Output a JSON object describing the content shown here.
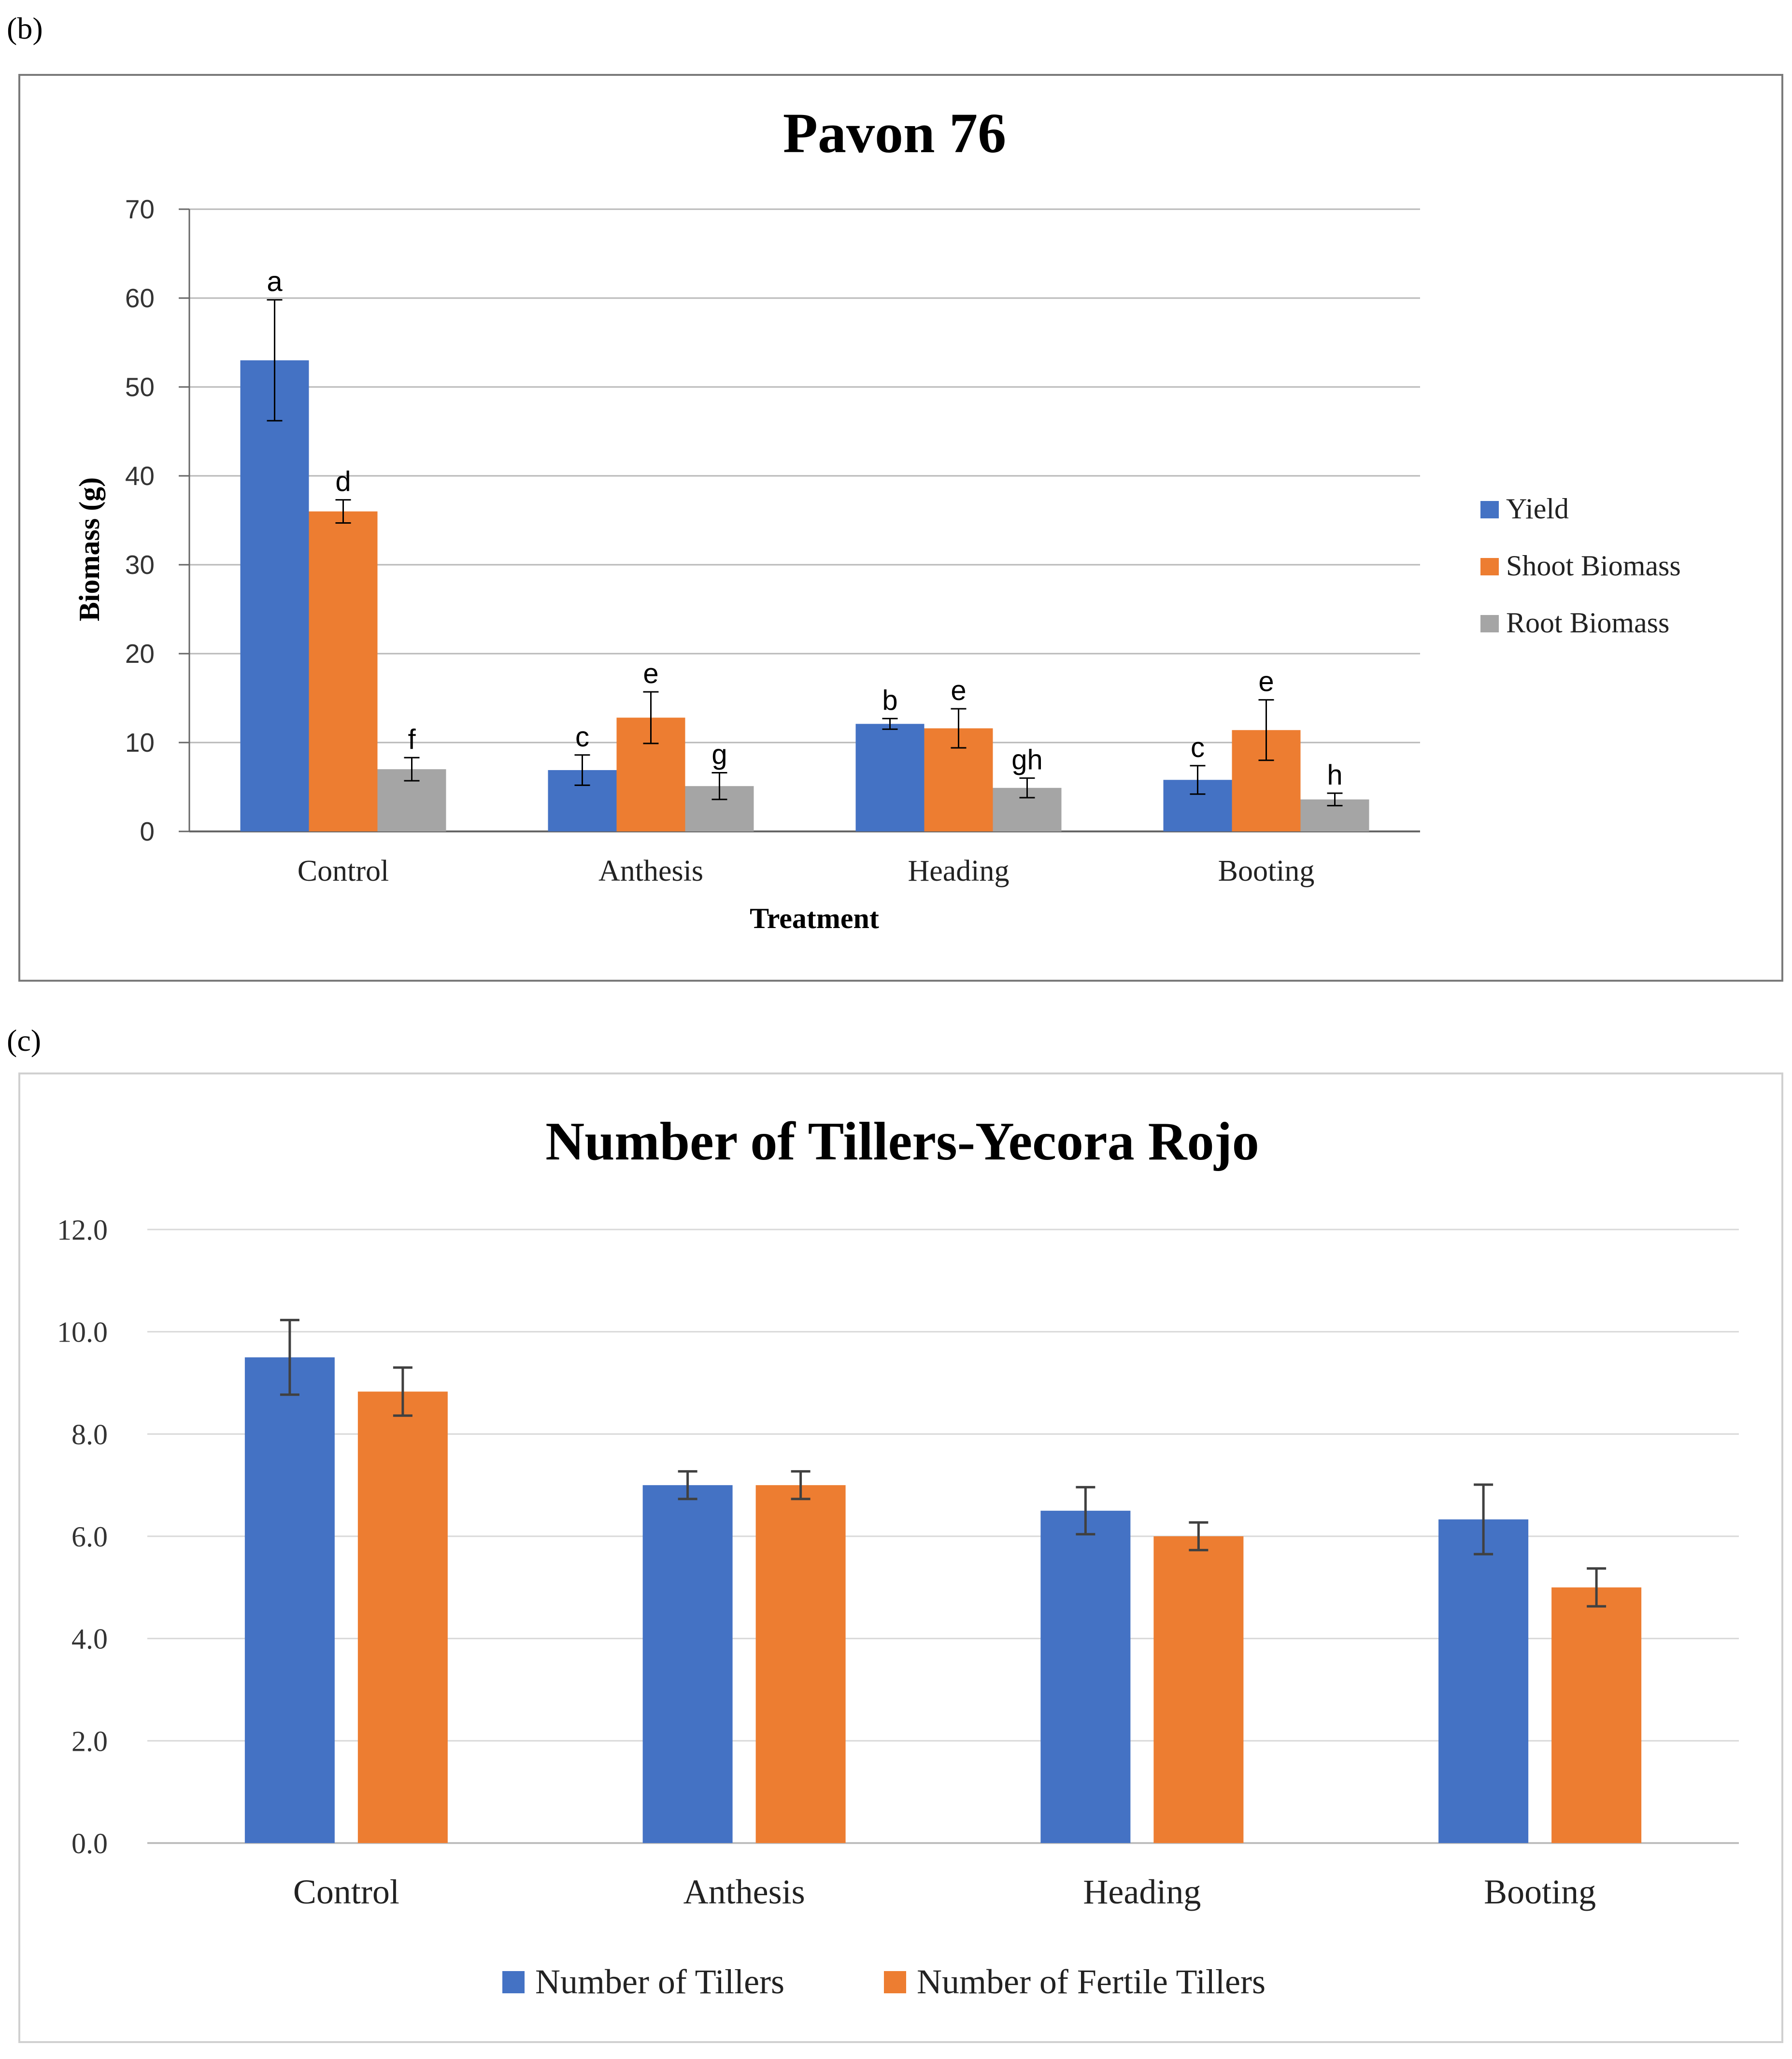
{
  "panel_b_label": "(b)",
  "panel_c_label": "(c)",
  "chart_data": [
    {
      "type": "bar",
      "title": "Pavon 76",
      "xlabel": "Treatment",
      "ylabel": "Biomass (g)",
      "ylim": [
        0,
        70
      ],
      "yticks": [
        "0",
        "10",
        "20",
        "30",
        "40",
        "50",
        "60",
        "70"
      ],
      "grid": true,
      "legend_position": "right",
      "categories": [
        "Control",
        "Anthesis",
        "Heading",
        "Booting"
      ],
      "series": [
        {
          "name": "Yield",
          "color": "#4472C4",
          "values": [
            53,
            6.9,
            12.1,
            5.8
          ],
          "errors": [
            6.8,
            1.7,
            0.6,
            1.6
          ],
          "labels": [
            "a",
            "c",
            "b",
            "c"
          ]
        },
        {
          "name": "Shoot Biomass",
          "color": "#ED7D31",
          "values": [
            36,
            12.8,
            11.6,
            11.4
          ],
          "errors": [
            1.3,
            2.9,
            2.2,
            3.4
          ],
          "labels": [
            "d",
            "e",
            "e",
            "e"
          ]
        },
        {
          "name": "Root Biomass",
          "color": "#A5A5A5",
          "values": [
            7,
            5.1,
            4.9,
            3.6
          ],
          "errors": [
            1.3,
            1.5,
            1.1,
            0.7
          ],
          "labels": [
            "f",
            "g",
            "gh",
            "h"
          ]
        }
      ]
    },
    {
      "type": "bar",
      "title": "Number of Tillers-Yecora Rojo",
      "xlabel": "",
      "ylabel": "",
      "ylim": [
        0,
        12
      ],
      "yticks": [
        "0.0",
        "2.0",
        "4.0",
        "6.0",
        "8.0",
        "10.0",
        "12.0"
      ],
      "grid": true,
      "legend_position": "bottom",
      "categories": [
        "Control",
        "Anthesis",
        "Heading",
        "Booting"
      ],
      "series": [
        {
          "name": "Number of Tillers",
          "color": "#4472C4",
          "values": [
            9.5,
            7.0,
            6.5,
            6.33
          ],
          "errors": [
            0.73,
            0.27,
            0.46,
            0.68
          ]
        },
        {
          "name": "Number of Fertile Tillers",
          "color": "#ED7D31",
          "values": [
            8.83,
            7.0,
            6.0,
            5.0
          ],
          "errors": [
            0.47,
            0.27,
            0.27,
            0.37
          ]
        }
      ]
    }
  ]
}
